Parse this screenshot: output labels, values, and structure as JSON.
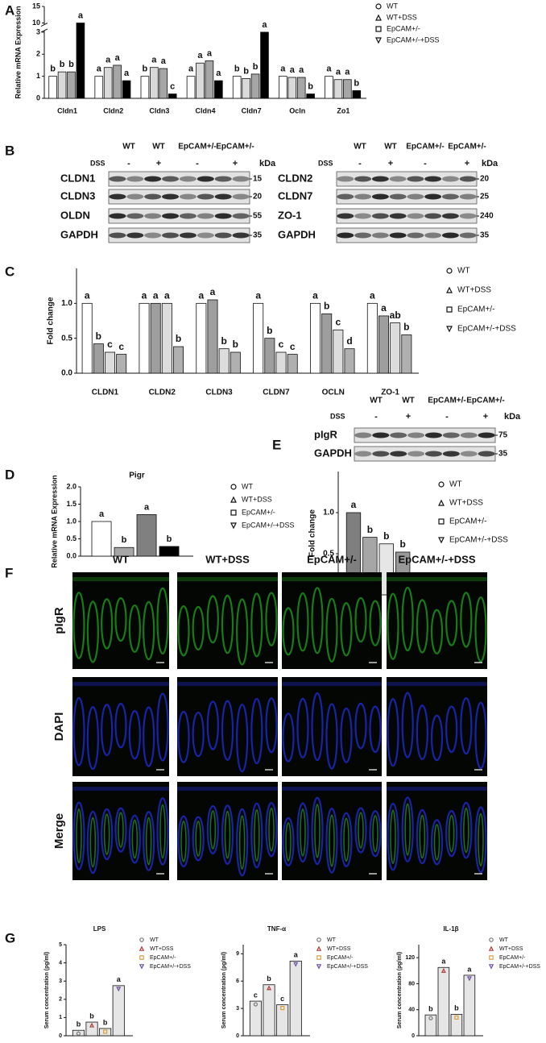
{
  "panel_labels": [
    "A",
    "B",
    "C",
    "D",
    "E",
    "F",
    "G"
  ],
  "chart_data": [
    {
      "type": "bar",
      "y_label": "Relative mRNA Expression",
      "categories": [
        "Cldn1",
        "Cldn2",
        "Cldn3",
        "Cldn4",
        "Cldn7",
        "Ocln",
        "Zo1"
      ],
      "series": [
        {
          "name": "WT",
          "color": "#ffffff",
          "values": [
            1.0,
            1.0,
            1.0,
            1.0,
            1.0,
            1.0,
            1.0
          ],
          "letters": [
            "b",
            "a",
            "b",
            "a",
            "b",
            "a",
            "a"
          ]
        },
        {
          "name": "WT+DSS",
          "color": "#d9d9d9",
          "values": [
            1.2,
            1.4,
            1.4,
            1.6,
            0.9,
            0.95,
            0.85
          ],
          "letters": [
            "b",
            "a",
            "a",
            "a",
            "b",
            "a",
            "a"
          ]
        },
        {
          "name": "EpCAM+/-",
          "color": "#a6a6a6",
          "values": [
            1.2,
            1.5,
            1.35,
            1.7,
            1.1,
            0.95,
            0.85
          ],
          "letters": [
            "b",
            "a",
            "a",
            "a",
            "b",
            "a",
            "a"
          ]
        },
        {
          "name": "EpCAM+/-+DSS",
          "color": "#000000",
          "values": [
            10,
            0.8,
            0.2,
            0.8,
            3.0,
            0.2,
            0.35
          ],
          "letters": [
            "a",
            "a",
            "c",
            "a",
            "a",
            "b",
            "b"
          ]
        }
      ],
      "ylim": [
        0,
        15
      ],
      "yticks": [
        0,
        1,
        2,
        3,
        10,
        15
      ],
      "broken_axis": true,
      "legend": "right"
    },
    {
      "type": "bar",
      "y_label": "Fold change",
      "categories": [
        "CLDN1",
        "CLDN2",
        "CLDN3",
        "CLDN7",
        "OCLN",
        "ZO-1"
      ],
      "series": [
        {
          "name": "WT",
          "color": "#ffffff",
          "values": [
            1.0,
            1.0,
            1.0,
            1.0,
            1.0,
            1.0
          ],
          "letters": [
            "a",
            "a",
            "a",
            "a",
            "a",
            "a"
          ]
        },
        {
          "name": "WT+DSS",
          "color": "#9e9e9e",
          "values": [
            0.42,
            1.0,
            1.05,
            0.5,
            0.85,
            0.82
          ],
          "letters": [
            "b",
            "a",
            "a",
            "b",
            "b",
            "a"
          ]
        },
        {
          "name": "EpCAM+/-",
          "color": "#dcdcdc",
          "values": [
            0.3,
            1.0,
            0.35,
            0.3,
            0.62,
            0.72
          ],
          "letters": [
            "c",
            "a",
            "b",
            "c",
            "c",
            "ab"
          ]
        },
        {
          "name": "EpCAM+/-+DSS",
          "color": "#b0b0b0",
          "values": [
            0.27,
            0.38,
            0.3,
            0.27,
            0.35,
            0.55
          ],
          "letters": [
            "c",
            "b",
            "b",
            "c",
            "d",
            "b"
          ]
        }
      ],
      "ylim": [
        0,
        1.5
      ],
      "yticks": [
        {
          "value": 0,
          "label": "0.0"
        },
        {
          "value": 0.5,
          "label": "0.5"
        },
        {
          "value": 1,
          "label": "1.0"
        }
      ],
      "legend": "right"
    },
    {
      "type": "bar",
      "title": "Pigr",
      "y_label": "Relative mRNA Expression",
      "categories": [
        null
      ],
      "series": [
        {
          "name": "WT",
          "color": "#ffffff",
          "values": [
            1.0
          ],
          "letters": [
            "a"
          ]
        },
        {
          "name": "WT+DSS",
          "color": "#a6a6a6",
          "values": [
            0.25
          ],
          "letters": [
            "b"
          ]
        },
        {
          "name": "EpCAM+/-",
          "color": "#808080",
          "values": [
            1.2
          ],
          "letters": [
            "a"
          ]
        },
        {
          "name": "EpCAM+/-+DSS",
          "color": "#000000",
          "values": [
            0.28
          ],
          "letters": [
            "b"
          ]
        }
      ],
      "ylim": [
        0,
        2
      ],
      "yticks": [
        {
          "value": 0,
          "label": "0.0"
        },
        {
          "value": 0.5,
          "label": "0.5"
        },
        {
          "value": 1,
          "label": "1.0"
        },
        {
          "value": 1.5,
          "label": "1.5"
        },
        {
          "value": 2,
          "label": "2.0"
        }
      ],
      "legend": "right"
    },
    {
      "type": "bar",
      "y_label": "Fold change",
      "categories": [
        null
      ],
      "series": [
        {
          "name": "WT",
          "color": "#7f7f7f",
          "values": [
            1.0
          ],
          "letters": [
            "a"
          ]
        },
        {
          "name": "WT+DSS",
          "color": "#a6a6a6",
          "values": [
            0.7
          ],
          "letters": [
            "b"
          ]
        },
        {
          "name": "EpCAM+/-",
          "color": "#e6e6e6",
          "values": [
            0.62
          ],
          "letters": [
            "b"
          ]
        },
        {
          "name": "EpCAM+/-+DSS",
          "color": "#999999",
          "values": [
            0.52
          ],
          "letters": [
            "b"
          ]
        }
      ],
      "ylim": [
        0,
        1.5
      ],
      "yticks": [
        {
          "value": 0,
          "label": "0.0"
        },
        {
          "value": 0.5,
          "label": "0.5"
        },
        {
          "value": 1,
          "label": "1.0"
        }
      ],
      "legend": "right"
    },
    {
      "type": "bar",
      "title": "LPS",
      "y_label": "Serum concentration (pg/ml)",
      "categories": [
        null
      ],
      "bar_color": "#e6e6e6",
      "series": [
        {
          "name": "WT",
          "color": "#777777",
          "values": [
            0.3
          ],
          "letters": [
            "b"
          ]
        },
        {
          "name": "WT+DSS",
          "color": "#b03a3a",
          "values": [
            0.75
          ],
          "letters": [
            "b"
          ]
        },
        {
          "name": "EpCAM+/-",
          "color": "#d8a040",
          "values": [
            0.4
          ],
          "letters": [
            "b"
          ]
        },
        {
          "name": "EpCAM+/-+DSS",
          "color": "#6a4fa0",
          "values": [
            2.75
          ],
          "letters": [
            "a"
          ]
        }
      ],
      "ylim": [
        0,
        5
      ],
      "yticks": [
        0,
        1,
        2,
        3,
        4,
        5
      ],
      "legend": "right"
    },
    {
      "type": "bar",
      "title": "TNF-α",
      "y_label": "Serum concentration (pg/ml)",
      "categories": [
        null
      ],
      "bar_color": "#e6e6e6",
      "series": [
        {
          "name": "WT",
          "color": "#777777",
          "values": [
            3.8
          ],
          "letters": [
            "c"
          ]
        },
        {
          "name": "WT+DSS",
          "color": "#b03a3a",
          "values": [
            5.6
          ],
          "letters": [
            "b"
          ]
        },
        {
          "name": "EpCAM+/-",
          "color": "#d8a040",
          "values": [
            3.4
          ],
          "letters": [
            "c"
          ]
        },
        {
          "name": "EpCAM+/-+DSS",
          "color": "#6a4fa0",
          "values": [
            8.2
          ],
          "letters": [
            "a"
          ]
        }
      ],
      "ylim": [
        0,
        10
      ],
      "yticks": [
        0,
        3,
        6,
        9
      ],
      "legend": "right"
    },
    {
      "type": "bar",
      "title": "IL-1β",
      "y_label": "Serum concentration (pg/ml)",
      "categories": [
        null
      ],
      "bar_color": "#e6e6e6",
      "series": [
        {
          "name": "WT",
          "color": "#777777",
          "values": [
            32
          ],
          "letters": [
            "b"
          ]
        },
        {
          "name": "WT+DSS",
          "color": "#b03a3a",
          "values": [
            105
          ],
          "letters": [
            "a"
          ]
        },
        {
          "name": "EpCAM+/-",
          "color": "#d8a040",
          "values": [
            33
          ],
          "letters": [
            "b"
          ]
        },
        {
          "name": "EpCAM+/-+DSS",
          "color": "#6a4fa0",
          "values": [
            93
          ],
          "letters": [
            "a"
          ]
        }
      ],
      "ylim": [
        0,
        140
      ],
      "yticks": [
        0,
        40,
        80,
        120
      ],
      "legend": "right"
    }
  ],
  "blots": [
    {
      "header": [
        "WT",
        "WT",
        "EpCAM+/-",
        "EpCAM+/-"
      ],
      "treatment_label": "DSS",
      "treatment": [
        "-",
        "+",
        "-",
        "+"
      ],
      "unit": "kDa",
      "rows": [
        {
          "name": "CLDN1",
          "kda": 15
        },
        {
          "name": "CLDN3",
          "kda": 20
        },
        {
          "name": "OLDN",
          "kda": 55
        },
        {
          "name": "GAPDH",
          "kda": 35
        }
      ]
    },
    {
      "header": [
        "WT",
        "WT",
        "EpCAM+/-",
        "EpCAM+/-"
      ],
      "treatment_label": "DSS",
      "treatment": [
        "-",
        "+",
        "-",
        "+"
      ],
      "unit": "kDa",
      "rows": [
        {
          "name": "CLDN2",
          "kda": 20
        },
        {
          "name": "CLDN7",
          "kda": 25
        },
        {
          "name": "ZO-1",
          "kda": 240
        },
        {
          "name": "GAPDH",
          "kda": 35
        }
      ]
    },
    {
      "header": [
        "WT",
        "WT",
        "EpCAM+/-",
        "EpCAM+/-"
      ],
      "treatment_label": "DSS",
      "treatment": [
        "-",
        "+",
        "-",
        "+"
      ],
      "unit": "kDa",
      "rows": [
        {
          "name": "pIgR",
          "kda": 75
        },
        {
          "name": "GAPDH",
          "kda": 35
        }
      ]
    }
  ],
  "images": {
    "columns": [
      "WT",
      "WT+DSS",
      "EpCAM+/-",
      "EpCAM+/-+DSS"
    ],
    "rows": [
      "pIgR",
      "DAPI",
      "Merge"
    ]
  }
}
